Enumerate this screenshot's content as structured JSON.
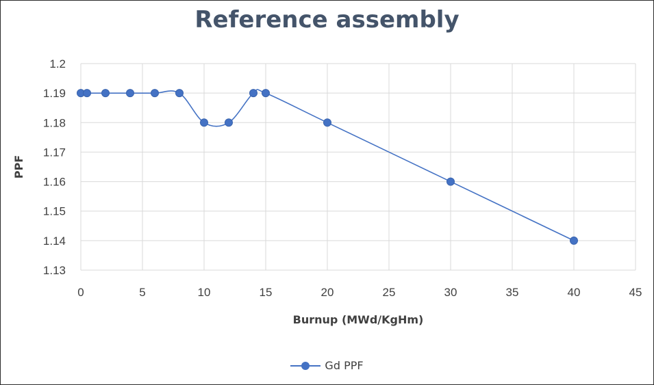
{
  "chart_data": {
    "type": "line",
    "title": "Reference assembly",
    "xlabel": "Burnup (MWd/KgHm)",
    "ylabel": "PPF",
    "xlim": [
      0,
      45
    ],
    "ylim": [
      1.13,
      1.2
    ],
    "x_ticks": [
      "0",
      "5",
      "10",
      "15",
      "20",
      "25",
      "30",
      "35",
      "40",
      "45"
    ],
    "y_ticks": [
      "1.13",
      "1.14",
      "1.15",
      "1.16",
      "1.17",
      "1.18",
      "1.19",
      "1.2"
    ],
    "grid": true,
    "legend_position": "bottom",
    "series": [
      {
        "name": "Gd PPF",
        "color": "#4472c4",
        "points": [
          {
            "x": 0,
            "y": 1.19
          },
          {
            "x": 0.5,
            "y": 1.19
          },
          {
            "x": 2,
            "y": 1.19
          },
          {
            "x": 4,
            "y": 1.19
          },
          {
            "x": 6,
            "y": 1.19
          },
          {
            "x": 8,
            "y": 1.19
          },
          {
            "x": 10,
            "y": 1.18
          },
          {
            "x": 12,
            "y": 1.18
          },
          {
            "x": 14,
            "y": 1.19
          },
          {
            "x": 15,
            "y": 1.19
          },
          {
            "x": 20,
            "y": 1.18
          },
          {
            "x": 30,
            "y": 1.16
          },
          {
            "x": 40,
            "y": 1.14
          }
        ]
      }
    ]
  }
}
